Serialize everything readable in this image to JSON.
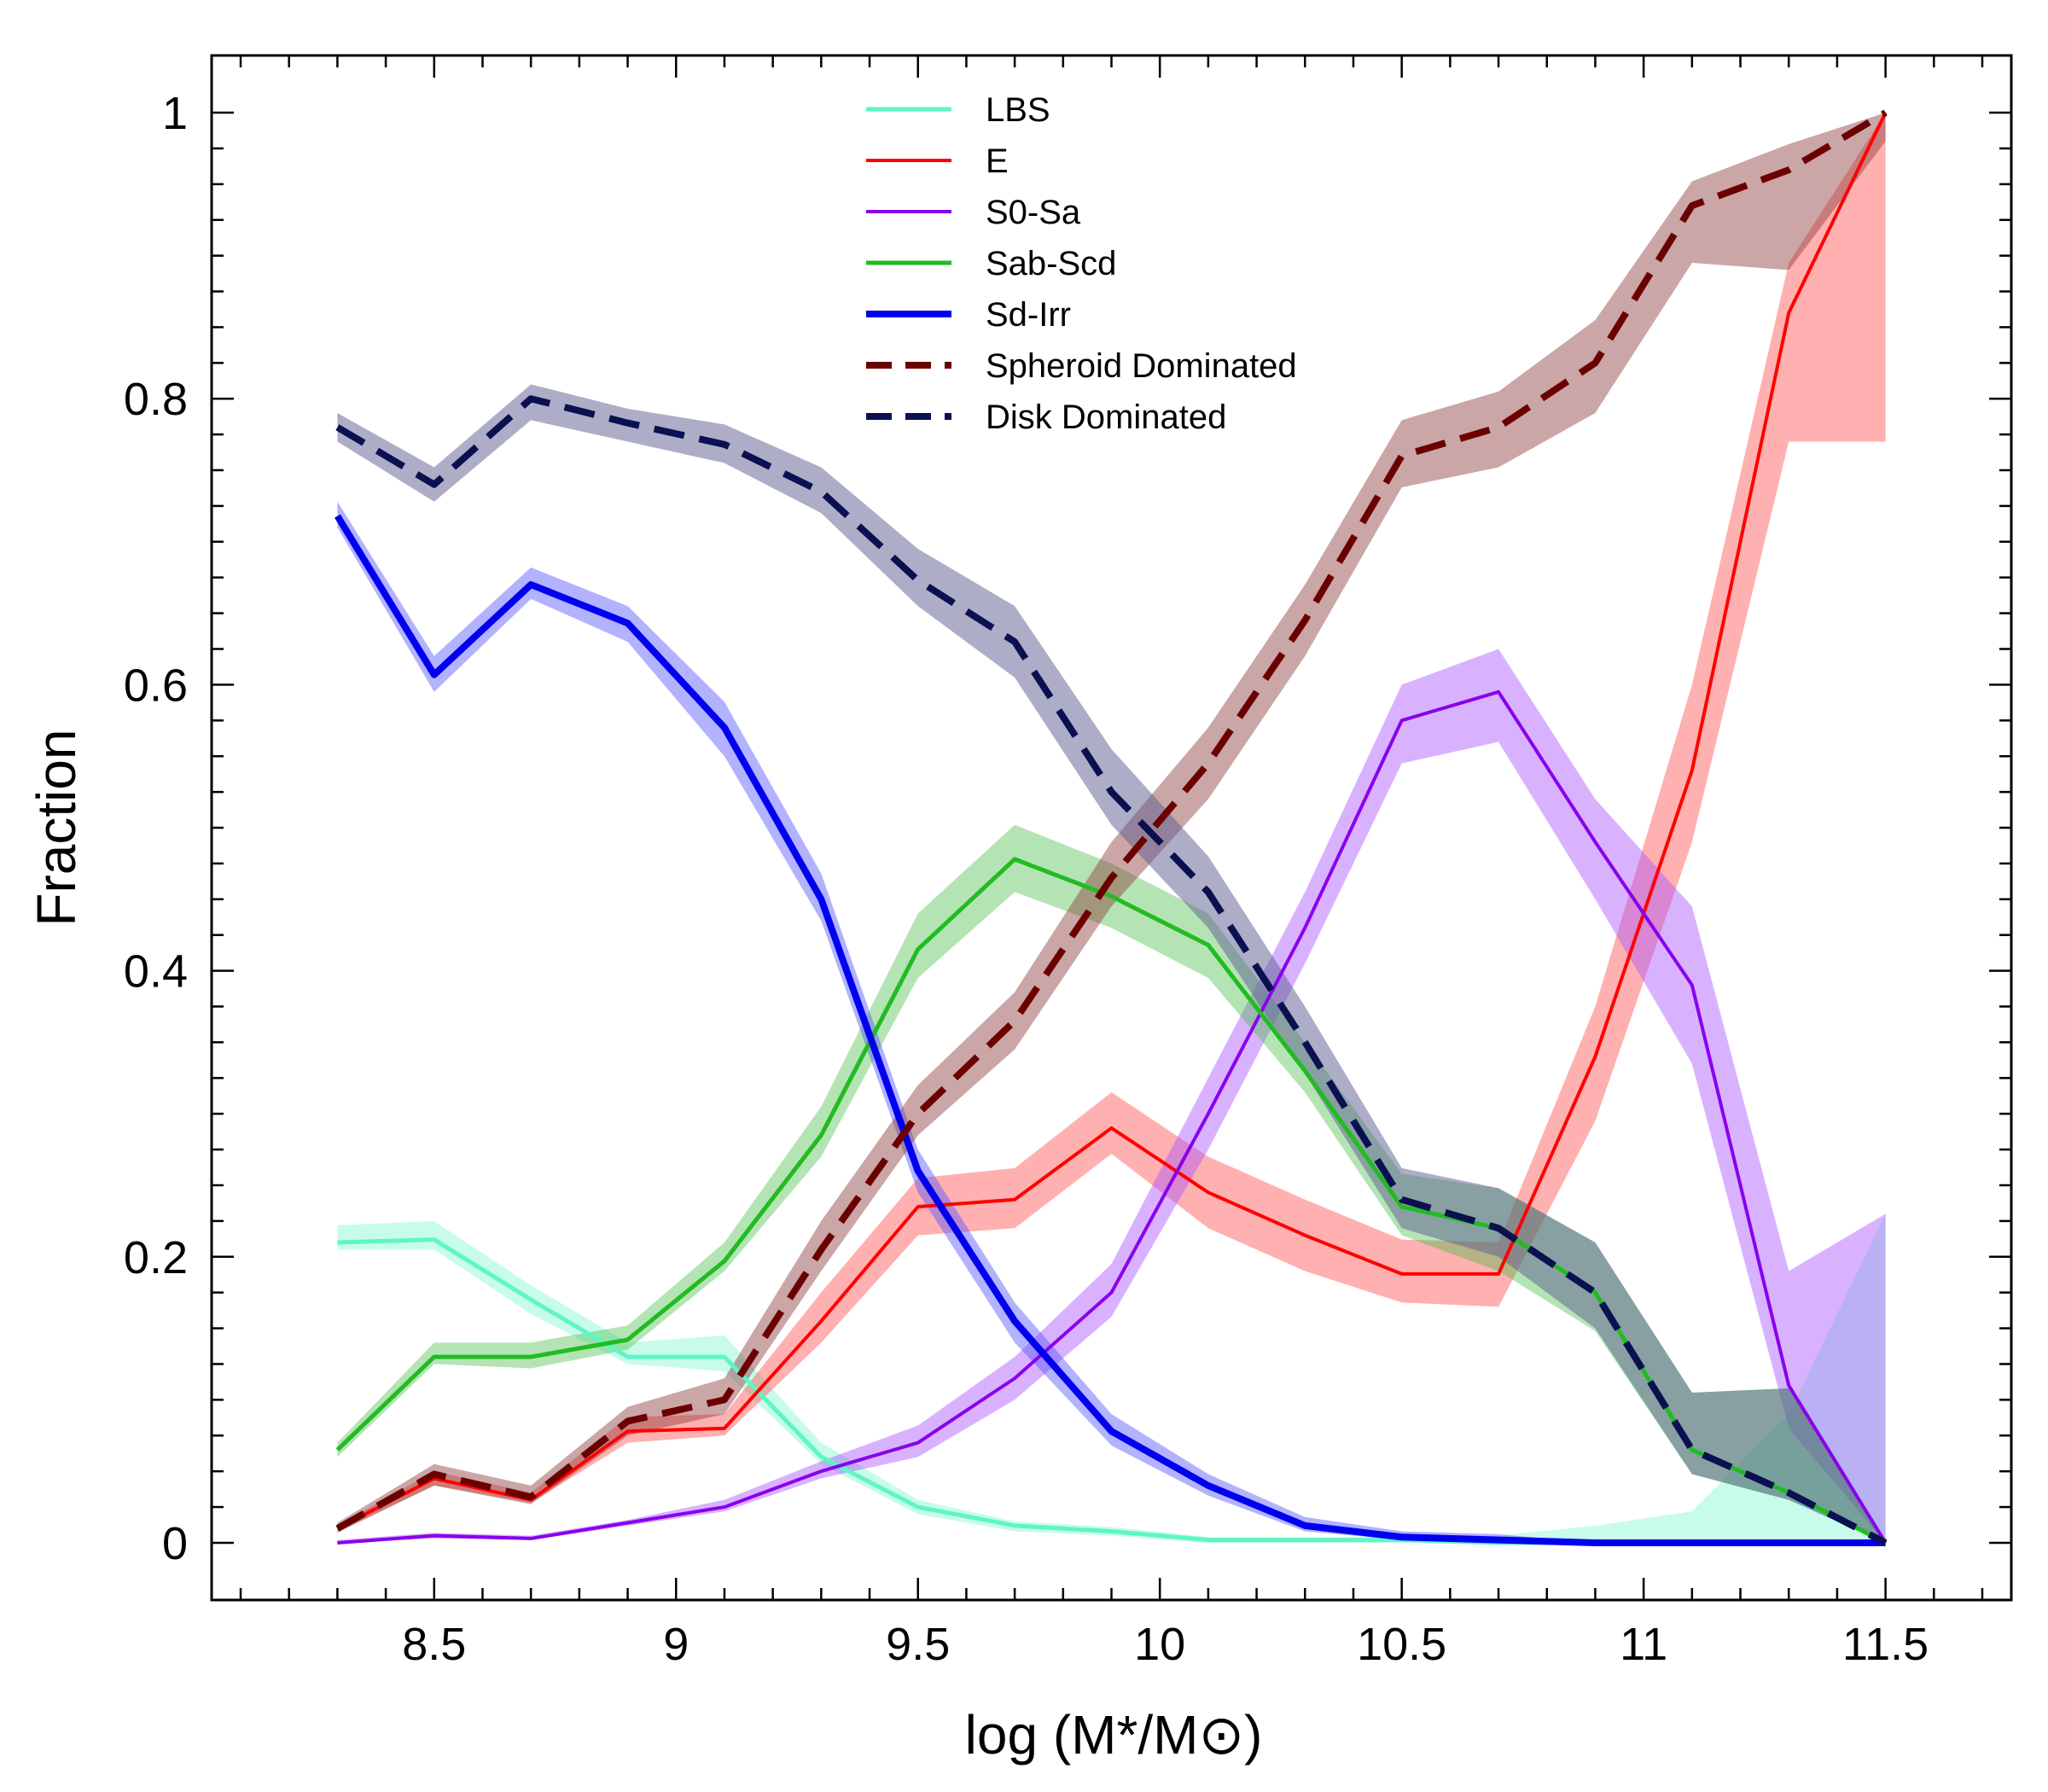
{
  "chart_data": {
    "type": "line",
    "title": "",
    "xlabel": "log (M*/M⊙)",
    "ylabel": "Fraction",
    "xlim": [
      8.04,
      11.76
    ],
    "ylim": [
      -0.04,
      1.04
    ],
    "x": [
      8.3,
      8.5,
      8.7,
      8.9,
      9.1,
      9.3,
      9.5,
      9.7,
      9.9,
      10.1,
      10.3,
      10.5,
      10.7,
      10.9,
      11.1,
      11.3,
      11.5
    ],
    "xticks": [
      8.5,
      9,
      9.5,
      10,
      10.5,
      11,
      11.5
    ],
    "xtick_labels": [
      "8.5",
      "9",
      "9.5",
      "10",
      "10.5",
      "11",
      "11.5"
    ],
    "yticks": [
      0,
      0.2,
      0.4,
      0.6,
      0.8,
      1
    ],
    "ytick_labels": [
      "0",
      "0.2",
      "0.4",
      "0.6",
      "0.8",
      "1"
    ],
    "legend_position": "top-center",
    "series": [
      {
        "name": "LBS",
        "color": "#5ff5c5",
        "style": "solid",
        "width": 5,
        "values": [
          0.21,
          0.212,
          0.17,
          0.13,
          0.13,
          0.06,
          0.025,
          0.012,
          0.008,
          0.002,
          0.002,
          0.002,
          0.0,
          0.0,
          0.0,
          0.0,
          0.0
        ],
        "lower": [
          0.205,
          0.205,
          0.16,
          0.125,
          0.12,
          0.055,
          0.02,
          0.008,
          0.005,
          0.0,
          0.0,
          0.0,
          0.0,
          0.0,
          0.0,
          0.0,
          0.0
        ],
        "upper": [
          0.222,
          0.225,
          0.18,
          0.14,
          0.145,
          0.07,
          0.03,
          0.015,
          0.011,
          0.004,
          0.004,
          0.004,
          0.005,
          0.012,
          0.022,
          0.09,
          0.23
        ],
        "band_color": "#5ff5c5",
        "band_opacity": 0.35
      },
      {
        "name": "E",
        "color": "#ff0000",
        "style": "solid",
        "width": 4,
        "values": [
          0.01,
          0.045,
          0.03,
          0.078,
          0.08,
          0.155,
          0.235,
          0.24,
          0.29,
          0.245,
          0.215,
          0.188,
          0.188,
          0.34,
          0.54,
          0.86,
          1.0
        ],
        "lower": [
          0.008,
          0.04,
          0.028,
          0.07,
          0.075,
          0.14,
          0.215,
          0.22,
          0.272,
          0.22,
          0.19,
          0.168,
          0.165,
          0.295,
          0.49,
          0.77,
          0.77
        ],
        "upper": [
          0.012,
          0.05,
          0.035,
          0.088,
          0.09,
          0.175,
          0.255,
          0.262,
          0.315,
          0.27,
          0.24,
          0.212,
          0.21,
          0.375,
          0.6,
          0.895,
          1.0
        ],
        "band_color": "#ff5050",
        "band_opacity": 0.45
      },
      {
        "name": "S0-Sa",
        "color": "#8800ee",
        "style": "solid",
        "width": 4,
        "values": [
          0.0,
          0.005,
          0.003,
          0.014,
          0.025,
          0.05,
          0.07,
          0.115,
          0.175,
          0.3,
          0.43,
          0.575,
          0.595,
          0.49,
          0.39,
          0.11,
          0.0
        ],
        "lower": [
          0.0,
          0.003,
          0.002,
          0.012,
          0.022,
          0.045,
          0.06,
          0.1,
          0.158,
          0.275,
          0.405,
          0.545,
          0.56,
          0.45,
          0.335,
          0.08,
          0.0
        ],
        "upper": [
          0.002,
          0.007,
          0.005,
          0.016,
          0.03,
          0.057,
          0.082,
          0.13,
          0.195,
          0.325,
          0.455,
          0.6,
          0.625,
          0.52,
          0.445,
          0.19,
          0.23
        ],
        "band_color": "#aa55ff",
        "band_opacity": 0.45
      },
      {
        "name": "Sab-Scd",
        "color": "#22bb22",
        "style": "solid",
        "width": 5,
        "values": [
          0.065,
          0.13,
          0.13,
          0.142,
          0.197,
          0.285,
          0.415,
          0.478,
          0.452,
          0.418,
          0.33,
          0.235,
          0.22,
          0.175,
          0.065,
          0.035,
          0.0
        ],
        "lower": [
          0.06,
          0.125,
          0.122,
          0.135,
          0.19,
          0.27,
          0.395,
          0.455,
          0.43,
          0.395,
          0.315,
          0.215,
          0.19,
          0.148,
          0.048,
          0.03,
          0.0
        ],
        "upper": [
          0.07,
          0.14,
          0.14,
          0.152,
          0.21,
          0.305,
          0.44,
          0.502,
          0.475,
          0.44,
          0.35,
          0.258,
          0.248,
          0.21,
          0.105,
          0.108,
          0.0
        ],
        "band_color": "#44bb44",
        "band_opacity": 0.4
      },
      {
        "name": "Sd-Irr",
        "color": "#0000ee",
        "style": "solid",
        "width": 8,
        "values": [
          0.718,
          0.607,
          0.67,
          0.643,
          0.57,
          0.45,
          0.26,
          0.155,
          0.078,
          0.04,
          0.012,
          0.004,
          0.002,
          0.0,
          0.0,
          0.0,
          0.0
        ],
        "lower": [
          0.71,
          0.595,
          0.66,
          0.63,
          0.55,
          0.435,
          0.245,
          0.14,
          0.068,
          0.033,
          0.008,
          0.002,
          0.0,
          0.0,
          0.0,
          0.0,
          0.0
        ],
        "upper": [
          0.728,
          0.62,
          0.682,
          0.655,
          0.588,
          0.468,
          0.275,
          0.168,
          0.09,
          0.048,
          0.018,
          0.008,
          0.006,
          0.0,
          0.0,
          0.0,
          0.0
        ],
        "band_color": "#5555ff",
        "band_opacity": 0.45
      },
      {
        "name": "Spheroid Dominated",
        "color": "#6b0000",
        "style": "dashed",
        "width": 8,
        "values": [
          0.01,
          0.048,
          0.032,
          0.085,
          0.1,
          0.205,
          0.3,
          0.365,
          0.465,
          0.545,
          0.645,
          0.76,
          0.78,
          0.825,
          0.935,
          0.96,
          1.0
        ],
        "lower": [
          0.007,
          0.04,
          0.027,
          0.075,
          0.09,
          0.19,
          0.285,
          0.345,
          0.445,
          0.52,
          0.62,
          0.738,
          0.752,
          0.79,
          0.895,
          0.89,
          0.98
        ],
        "upper": [
          0.014,
          0.055,
          0.04,
          0.095,
          0.115,
          0.225,
          0.32,
          0.385,
          0.49,
          0.57,
          0.67,
          0.785,
          0.805,
          0.855,
          0.952,
          0.978,
          1.0
        ],
        "band_color": "#8b3a3a",
        "band_opacity": 0.45
      },
      {
        "name": "Disk Dominated",
        "color": "#0a1050",
        "style": "dashed",
        "width": 8,
        "values": [
          0.78,
          0.74,
          0.8,
          0.783,
          0.768,
          0.735,
          0.673,
          0.63,
          0.525,
          0.455,
          0.35,
          0.24,
          0.22,
          0.175,
          0.065,
          0.035,
          0.0
        ],
        "lower": [
          0.77,
          0.728,
          0.785,
          0.77,
          0.755,
          0.72,
          0.655,
          0.605,
          0.502,
          0.43,
          0.328,
          0.22,
          0.2,
          0.15,
          0.048,
          0.03,
          0.0
        ],
        "upper": [
          0.79,
          0.752,
          0.81,
          0.793,
          0.782,
          0.752,
          0.695,
          0.655,
          0.555,
          0.48,
          0.375,
          0.262,
          0.248,
          0.21,
          0.105,
          0.108,
          0.0
        ],
        "band_color": "#5c5c90",
        "band_opacity": 0.5
      }
    ]
  }
}
